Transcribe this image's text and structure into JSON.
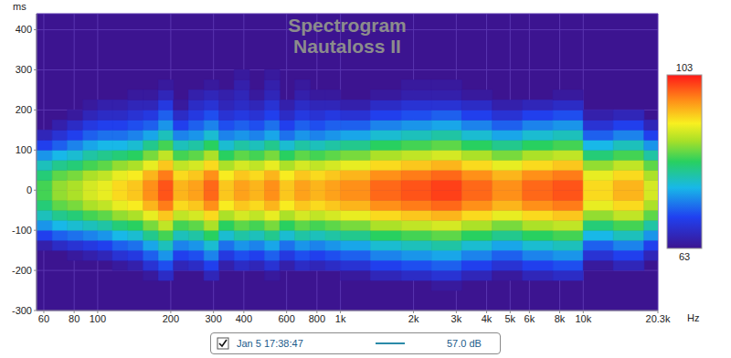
{
  "chart_data": {
    "type": "heatmap",
    "title": "Spectrogram",
    "subtitle": "Nautaloss II",
    "x_label": "Hz",
    "y_label": "ms",
    "log": "x",
    "grid": true,
    "legend": "bottom",
    "annotations": [
      "57.0 dB"
    ],
    "series": [
      {
        "name": "Jan 5 17:38:47",
        "color": "#2a8aa8"
      }
    ],
    "xlim": [
      56,
      20300
    ],
    "xticks": [
      60,
      80,
      100,
      200,
      300,
      400,
      600,
      800,
      {
        "value": 1000,
        "label": "1k"
      },
      {
        "value": 2000,
        "label": "2k"
      },
      {
        "value": 3000,
        "label": "3k"
      },
      {
        "value": 4000,
        "label": "4k"
      },
      {
        "value": 5000,
        "label": "5k"
      },
      {
        "value": 6000,
        "label": "6k"
      },
      {
        "value": 8000,
        "label": "8k"
      },
      {
        "value": 10000,
        "label": "10k"
      },
      {
        "value": 20300,
        "label": "20.3k"
      }
    ],
    "ylim": [
      -300,
      440
    ],
    "yticks": [
      -300,
      -200,
      -100,
      0,
      100,
      200,
      300,
      400
    ],
    "colorbar": {
      "range": [
        63,
        103
      ],
      "ticks": [
        63,
        103
      ]
    },
    "heatmap": {
      "x_edges": [
        56,
        65,
        75,
        87,
        100,
        115,
        133,
        154,
        178,
        205,
        237,
        274,
        316,
        365,
        422,
        487,
        562,
        649,
        750,
        866,
        1000,
        1330,
        1780,
        2370,
        3160,
        4220,
        5620,
        7500,
        10000,
        13300,
        17800,
        20300
      ],
      "y_edges": [
        -250,
        -225,
        -200,
        -175,
        -150,
        -125,
        -100,
        -75,
        -50,
        -25,
        0,
        25,
        50,
        75,
        100,
        125,
        150,
        175,
        200,
        225,
        250,
        275,
        300,
        325,
        350
      ],
      "cells": [
        [
          null,
          null,
          null,
          null,
          65,
          70,
          75,
          79,
          82,
          84,
          84,
          82,
          79,
          75,
          70,
          66,
          null,
          null,
          null,
          null,
          null,
          null,
          null,
          null
        ],
        [
          null,
          null,
          null,
          null,
          67,
          72,
          77,
          81,
          85,
          87,
          87,
          85,
          81,
          77,
          72,
          68,
          65,
          null,
          null,
          null,
          null,
          null,
          null,
          null
        ],
        [
          null,
          null,
          null,
          64,
          68,
          73,
          78,
          82,
          86,
          88,
          88,
          86,
          82,
          78,
          74,
          70,
          67,
          64,
          null,
          null,
          null,
          null,
          null,
          null
        ],
        [
          null,
          null,
          null,
          65,
          69,
          74,
          79,
          84,
          88,
          90,
          90,
          88,
          84,
          80,
          76,
          72,
          69,
          66,
          64,
          null,
          null,
          null,
          null,
          null
        ],
        [
          null,
          null,
          null,
          66,
          70,
          75,
          80,
          85,
          89,
          91,
          91,
          89,
          85,
          81,
          77,
          73,
          70,
          67,
          65,
          null,
          null,
          null,
          null,
          null
        ],
        [
          null,
          null,
          64,
          68,
          72,
          77,
          82,
          87,
          91,
          93,
          93,
          91,
          87,
          82,
          77,
          73,
          70,
          67,
          65,
          null,
          null,
          null,
          null,
          null
        ],
        [
          null,
          null,
          65,
          69,
          73,
          78,
          83,
          88,
          92,
          94,
          94,
          92,
          88,
          83,
          78,
          74,
          71,
          68,
          66,
          64,
          null,
          null,
          null,
          null
        ],
        [
          null,
          64,
          68,
          72,
          76,
          81,
          86,
          91,
          95,
          97,
          97,
          95,
          91,
          86,
          81,
          76,
          72,
          69,
          66,
          64,
          null,
          null,
          null,
          null
        ],
        [
          null,
          67,
          71,
          75,
          79,
          84,
          89,
          94,
          98,
          100,
          100,
          98,
          94,
          89,
          84,
          79,
          75,
          72,
          69,
          66,
          64,
          null,
          null,
          null
        ],
        [
          null,
          null,
          66,
          70,
          74,
          79,
          84,
          89,
          93,
          95,
          95,
          93,
          89,
          84,
          79,
          74,
          70,
          67,
          64,
          null,
          null,
          null,
          null,
          null
        ],
        [
          null,
          null,
          67,
          71,
          75,
          80,
          85,
          90,
          94,
          96,
          96,
          94,
          90,
          85,
          80,
          75,
          72,
          69,
          67,
          65,
          null,
          null,
          null,
          null
        ],
        [
          null,
          66,
          70,
          74,
          78,
          83,
          88,
          93,
          97,
          99,
          99,
          97,
          93,
          88,
          83,
          78,
          74,
          71,
          68,
          66,
          64,
          null,
          null,
          null
        ],
        [
          null,
          null,
          65,
          69,
          73,
          78,
          83,
          88,
          92,
          94,
          94,
          92,
          88,
          83,
          78,
          74,
          71,
          68,
          66,
          65,
          null,
          null,
          null,
          null
        ],
        [
          null,
          null,
          67,
          71,
          75,
          80,
          85,
          90,
          94,
          96,
          96,
          94,
          90,
          85,
          80,
          75,
          72,
          69,
          67,
          66,
          65,
          64,
          null,
          null
        ],
        [
          null,
          null,
          66,
          70,
          74,
          79,
          84,
          89,
          93,
          95,
          95,
          93,
          89,
          84,
          79,
          74,
          71,
          68,
          66,
          64,
          null,
          null,
          null,
          null
        ],
        [
          null,
          64,
          68,
          72,
          76,
          81,
          86,
          91,
          95,
          97,
          97,
          95,
          91,
          86,
          81,
          76,
          73,
          70,
          68,
          66,
          65,
          64,
          null,
          null
        ],
        [
          null,
          null,
          65,
          69,
          73,
          78,
          83,
          88,
          92,
          94,
          94,
          92,
          88,
          83,
          78,
          73,
          70,
          67,
          65,
          null,
          null,
          null,
          null,
          null
        ],
        [
          null,
          null,
          67,
          71,
          75,
          80,
          85,
          90,
          94,
          96,
          96,
          94,
          90,
          85,
          80,
          75,
          72,
          69,
          67,
          65,
          64,
          null,
          null,
          null
        ],
        [
          null,
          null,
          66,
          70,
          74,
          79,
          84,
          89,
          93,
          95,
          95,
          93,
          89,
          84,
          79,
          74,
          71,
          68,
          66,
          64,
          null,
          null,
          null,
          null
        ],
        [
          null,
          null,
          67,
          71,
          75,
          80,
          85,
          90,
          94,
          96,
          96,
          94,
          90,
          85,
          80,
          75,
          72,
          69,
          66,
          64,
          null,
          null,
          null,
          null
        ],
        [
          null,
          64,
          68,
          72,
          76,
          81,
          86,
          91,
          95,
          97,
          97,
          95,
          91,
          86,
          81,
          76,
          72,
          68,
          65,
          null,
          null,
          null,
          null,
          null
        ],
        [
          null,
          66,
          70,
          74,
          78,
          83,
          88,
          93,
          97,
          99,
          99,
          97,
          93,
          88,
          83,
          78,
          74,
          70,
          67,
          64,
          null,
          null,
          null,
          null
        ],
        [
          null,
          67,
          71,
          75,
          79,
          84,
          89,
          94,
          98,
          100,
          100,
          98,
          94,
          89,
          84,
          79,
          75,
          71,
          68,
          65,
          64,
          null,
          null,
          null
        ],
        [
          64,
          68,
          72,
          76,
          80,
          85,
          90,
          95,
          99,
          101,
          101,
          99,
          95,
          90,
          85,
          80,
          76,
          72,
          68,
          65,
          64,
          null,
          null,
          null
        ],
        [
          null,
          66,
          70,
          74,
          78,
          83,
          88,
          93,
          97,
          99,
          99,
          97,
          93,
          88,
          83,
          78,
          74,
          70,
          67,
          64,
          null,
          null,
          null,
          null
        ],
        [
          null,
          64,
          68,
          72,
          76,
          81,
          86,
          91,
          95,
          97,
          97,
          95,
          91,
          86,
          81,
          76,
          72,
          68,
          65,
          null,
          null,
          null,
          null,
          null
        ],
        [
          null,
          66,
          70,
          74,
          78,
          83,
          88,
          93,
          97,
          99,
          99,
          97,
          93,
          88,
          83,
          78,
          74,
          70,
          66,
          null,
          null,
          null,
          null,
          null
        ],
        [
          null,
          67,
          71,
          75,
          79,
          84,
          89,
          94,
          98,
          100,
          100,
          98,
          94,
          89,
          84,
          79,
          75,
          71,
          67,
          64,
          null,
          null,
          null,
          null
        ],
        [
          null,
          null,
          64,
          68,
          72,
          77,
          82,
          87,
          91,
          93,
          93,
          91,
          87,
          82,
          77,
          72,
          68,
          65,
          null,
          null,
          null,
          null,
          null,
          null
        ],
        [
          null,
          null,
          66,
          70,
          74,
          79,
          84,
          89,
          93,
          95,
          95,
          93,
          89,
          84,
          79,
          74,
          70,
          66,
          null,
          null,
          null,
          null,
          null,
          null
        ],
        [
          null,
          null,
          null,
          66,
          70,
          75,
          80,
          85,
          88,
          90,
          90,
          88,
          85,
          80,
          75,
          70,
          66,
          null,
          null,
          null,
          null,
          null,
          null,
          null
        ]
      ]
    }
  }
}
